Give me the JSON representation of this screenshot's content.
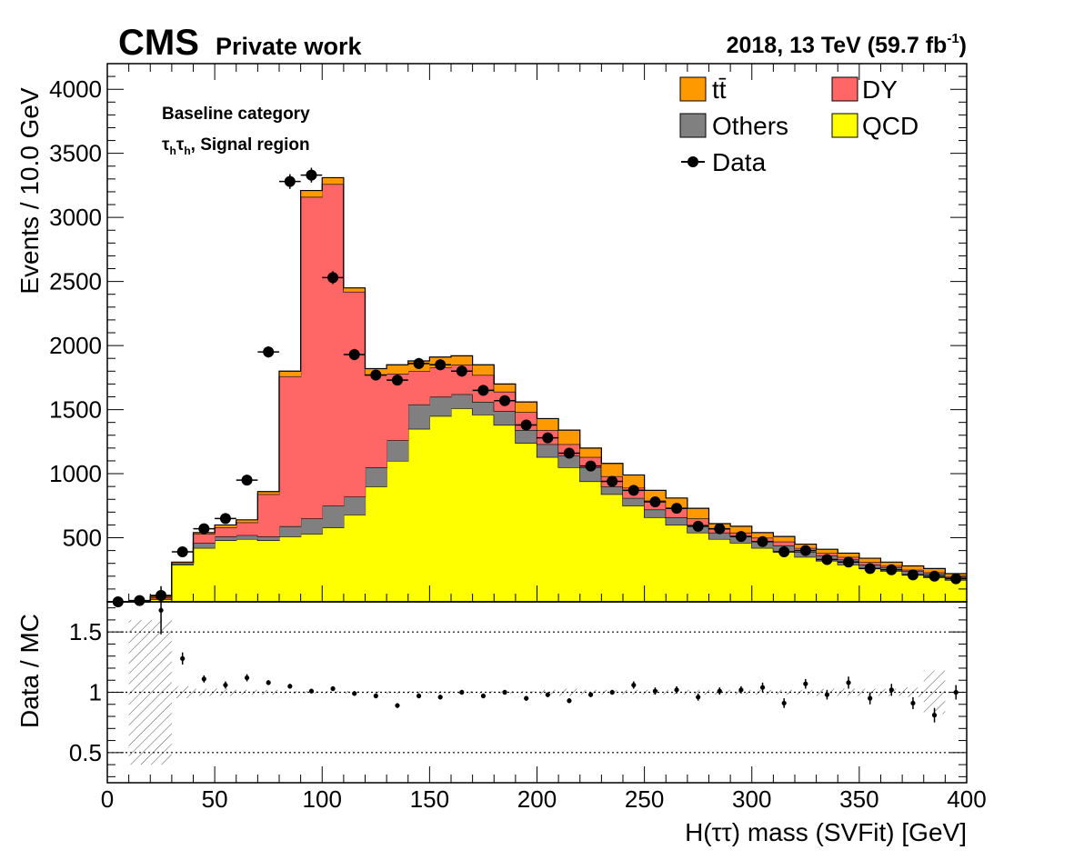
{
  "header": {
    "experiment": "CMS",
    "tag": "Private work",
    "lumi_text": "2018, 13 TeV (59.7 fb",
    "lumi_exp": "-1",
    "lumi_close": ")"
  },
  "annotations": {
    "category": "Baseline category",
    "channel_tau": "τ",
    "channel_sub": "h",
    "channel_rest": ", Signal region"
  },
  "legend": {
    "ttbar": "tt̄",
    "dy": "DY",
    "others": "Others",
    "qcd": "QCD",
    "data": "Data"
  },
  "colors": {
    "qcd": "#ffff00",
    "others": "#808080",
    "dy": "#ff6666",
    "ttbar": "#ff9900",
    "data": "#000000"
  },
  "chart_data": [
    {
      "type": "bar",
      "stacked": true,
      "ylabel": "Events / 10.0 GeV",
      "ylim": [
        0,
        4200
      ],
      "y_ticks": [
        500,
        1000,
        1500,
        2000,
        2500,
        3000,
        3500,
        4000
      ],
      "x_bin_edges": [
        0,
        10,
        20,
        30,
        40,
        50,
        60,
        70,
        80,
        90,
        100,
        110,
        120,
        130,
        140,
        150,
        160,
        170,
        180,
        190,
        200,
        210,
        220,
        230,
        240,
        250,
        260,
        270,
        280,
        290,
        300,
        310,
        320,
        330,
        340,
        350,
        360,
        370,
        380,
        390,
        400
      ],
      "series": [
        {
          "name": "QCD",
          "values": [
            0,
            0,
            20,
            290,
            420,
            480,
            490,
            480,
            510,
            530,
            580,
            680,
            900,
            1100,
            1350,
            1450,
            1510,
            1460,
            1380,
            1240,
            1130,
            1050,
            940,
            840,
            750,
            660,
            600,
            540,
            490,
            460,
            420,
            390,
            350,
            320,
            290,
            260,
            240,
            210,
            190,
            170
          ]
        },
        {
          "name": "Others",
          "values": [
            0,
            0,
            3,
            10,
            40,
            30,
            30,
            30,
            80,
            120,
            170,
            140,
            150,
            160,
            190,
            150,
            110,
            100,
            110,
            100,
            100,
            90,
            110,
            60,
            60,
            60,
            60,
            60,
            50,
            50,
            50,
            50,
            40,
            40,
            40,
            30,
            30,
            30,
            30,
            20
          ]
        },
        {
          "name": "DY",
          "values": [
            0,
            0,
            10,
            0,
            70,
            70,
            100,
            330,
            1170,
            2510,
            2510,
            1600,
            720,
            520,
            260,
            230,
            230,
            210,
            150,
            140,
            110,
            90,
            80,
            80,
            80,
            70,
            70,
            50,
            30,
            30,
            30,
            30,
            30,
            20,
            20,
            20,
            10,
            10,
            10,
            10
          ]
        },
        {
          "name": "tt̄",
          "values": [
            0,
            0,
            10,
            10,
            10,
            20,
            20,
            20,
            40,
            50,
            50,
            30,
            50,
            70,
            80,
            80,
            70,
            80,
            60,
            80,
            90,
            110,
            70,
            100,
            100,
            80,
            80,
            80,
            40,
            50,
            40,
            40,
            30,
            30,
            30,
            30,
            30,
            30,
            30,
            20
          ]
        }
      ],
      "data_points": {
        "name": "Data",
        "x": [
          5,
          15,
          25,
          35,
          45,
          55,
          65,
          75,
          85,
          95,
          105,
          115,
          125,
          135,
          145,
          155,
          165,
          175,
          185,
          195,
          205,
          215,
          225,
          235,
          245,
          255,
          265,
          275,
          285,
          295,
          305,
          315,
          325,
          335,
          345,
          355,
          365,
          375,
          385,
          395
        ],
        "y": [
          0,
          10,
          50,
          390,
          570,
          650,
          950,
          1950,
          3280,
          3330,
          2530,
          1930,
          1770,
          1730,
          1860,
          1850,
          1800,
          1650,
          1570,
          1380,
          1280,
          1160,
          1060,
          940,
          870,
          780,
          730,
          590,
          570,
          510,
          470,
          390,
          400,
          330,
          310,
          260,
          250,
          210,
          200,
          180
        ]
      }
    },
    {
      "type": "scatter",
      "ylabel": "Data / MC",
      "xlabel": "H(ττ) mass (SVFit) [GeV]",
      "ylim": [
        0.25,
        1.75
      ],
      "xlim": [
        0,
        400
      ],
      "y_ticks": [
        0.5,
        1,
        1.5
      ],
      "x_ticks": [
        0,
        50,
        100,
        150,
        200,
        250,
        300,
        350,
        400
      ],
      "reference_lines": [
        0.5,
        1,
        1.5
      ],
      "x": [
        25,
        35,
        45,
        55,
        65,
        75,
        85,
        95,
        105,
        115,
        125,
        135,
        145,
        155,
        165,
        175,
        185,
        195,
        205,
        215,
        225,
        235,
        245,
        255,
        265,
        275,
        285,
        295,
        305,
        315,
        325,
        335,
        345,
        355,
        365,
        375,
        385,
        395
      ],
      "y": [
        1.68,
        1.28,
        1.11,
        1.06,
        1.12,
        1.08,
        1.05,
        1.01,
        1.03,
        0.99,
        0.97,
        0.89,
        0.97,
        0.96,
        1.0,
        0.97,
        1.0,
        0.95,
        0.98,
        0.93,
        0.98,
        1.0,
        1.06,
        1.01,
        1.02,
        0.96,
        1.01,
        1.02,
        1.04,
        0.91,
        1.07,
        0.98,
        1.08,
        0.95,
        1.02,
        0.91,
        0.81,
        1.0
      ],
      "err": [
        0.2,
        0.05,
        0.03,
        0.03,
        0.03,
        0.02,
        0.02,
        0.02,
        0.02,
        0.02,
        0.02,
        0.02,
        0.02,
        0.02,
        0.02,
        0.02,
        0.02,
        0.02,
        0.02,
        0.02,
        0.02,
        0.02,
        0.03,
        0.03,
        0.03,
        0.03,
        0.03,
        0.03,
        0.04,
        0.04,
        0.04,
        0.04,
        0.05,
        0.05,
        0.05,
        0.05,
        0.06,
        0.06
      ],
      "uncertainty_band": {
        "x_bin_edges": [
          10,
          20,
          30,
          40,
          50,
          60,
          70,
          80,
          90,
          100,
          110,
          120,
          130,
          140,
          150,
          160,
          170,
          180,
          190,
          200,
          210,
          220,
          230,
          240,
          250,
          260,
          270,
          280,
          290,
          300,
          310,
          320,
          330,
          340,
          350,
          360,
          370,
          380,
          390
        ],
        "half_width": [
          0.6,
          0.6,
          0.05,
          0.03,
          0.03,
          0.02,
          0.02,
          0.01,
          0.01,
          0.01,
          0.01,
          0.01,
          0.01,
          0.01,
          0.01,
          0.01,
          0.01,
          0.01,
          0.01,
          0.02,
          0.03,
          0.02,
          0.02,
          0.02,
          0.02,
          0.02,
          0.02,
          0.02,
          0.02,
          0.02,
          0.02,
          0.02,
          0.03,
          0.03,
          0.03,
          0.03,
          0.04,
          0.18
        ]
      }
    }
  ]
}
